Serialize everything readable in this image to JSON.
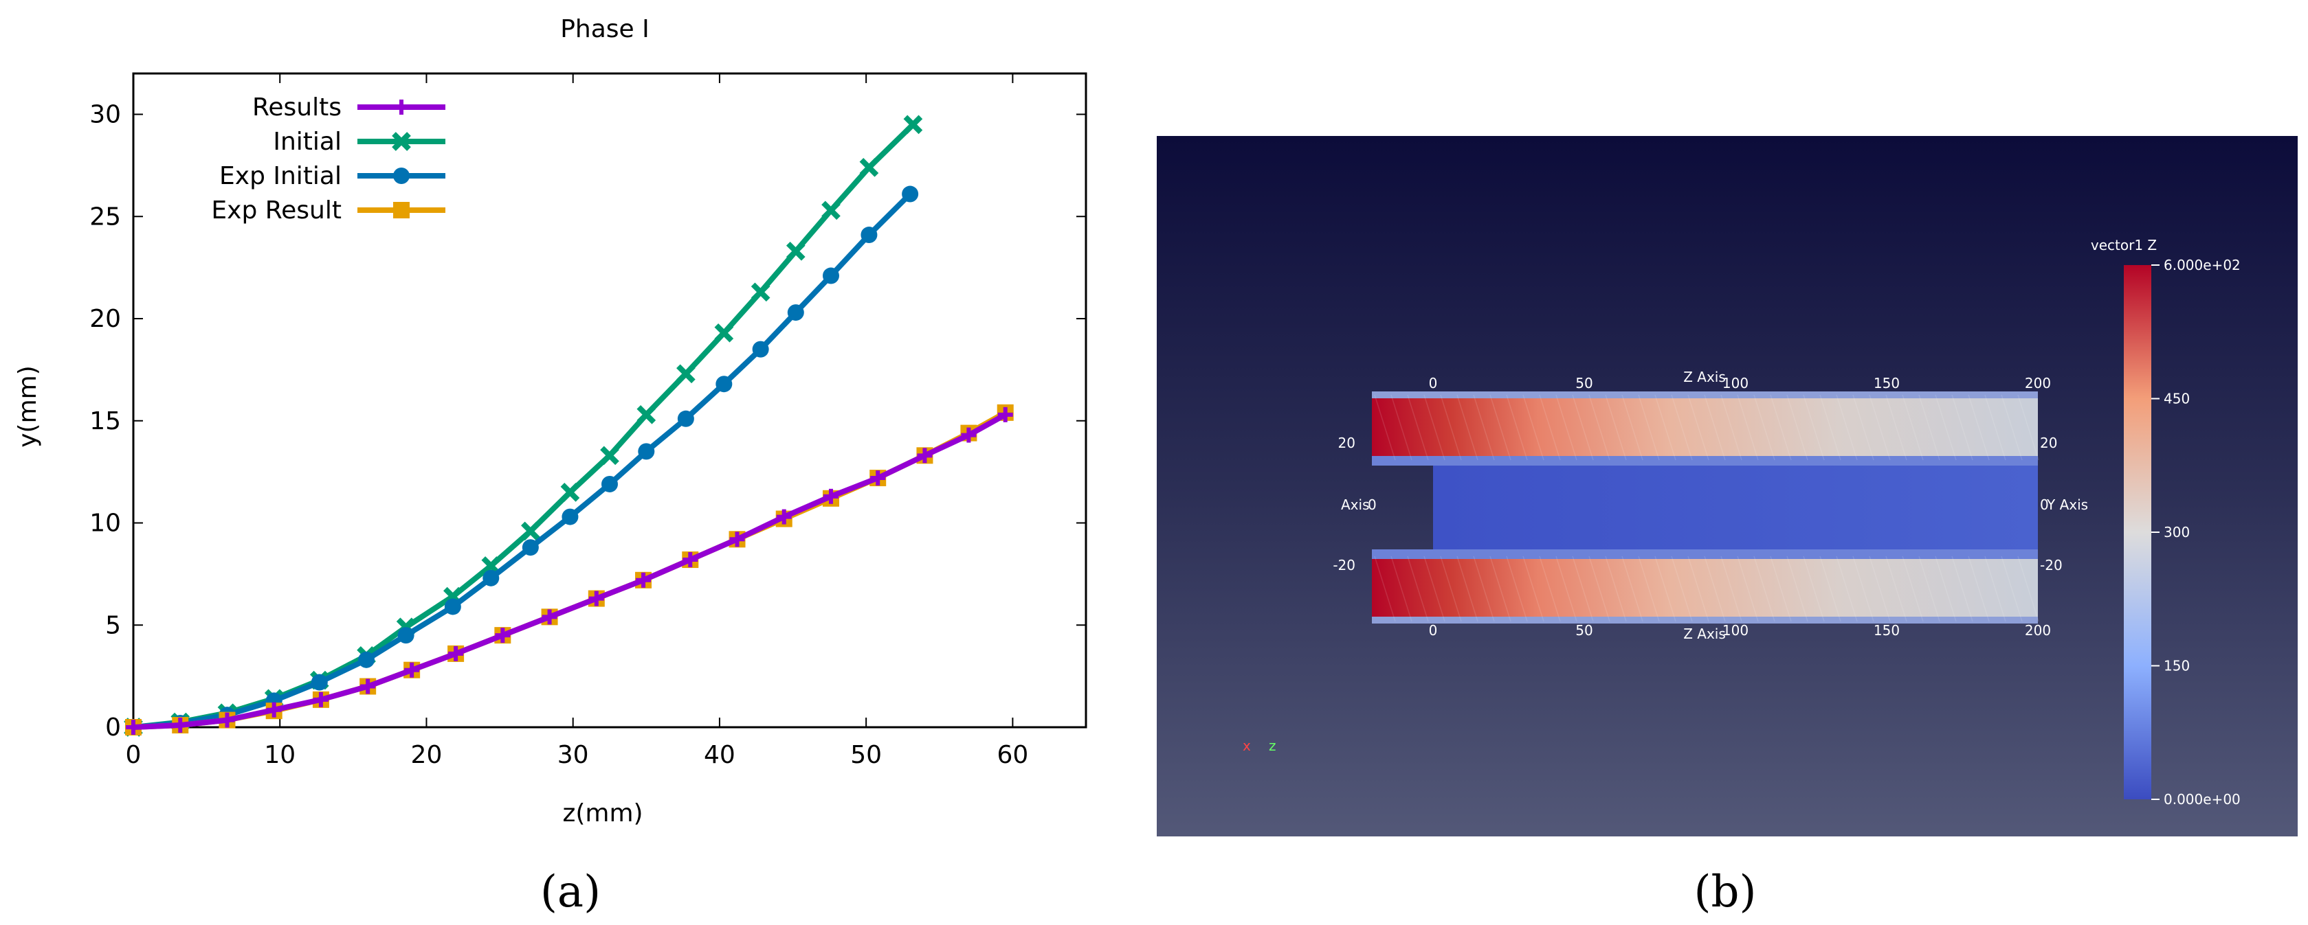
{
  "chart_data": [
    {
      "type": "line",
      "title": "Phase I",
      "xlabel": "z(mm)",
      "ylabel": "y(mm)",
      "xlim": [
        0,
        65
      ],
      "ylim": [
        0,
        32
      ],
      "xticks": [
        "0",
        "10",
        "20",
        "30",
        "40",
        "50",
        "60"
      ],
      "yticks": [
        "0",
        "5",
        "10",
        "15",
        "20",
        "25",
        "30"
      ],
      "legend_position": "top-left",
      "grid": false,
      "series": [
        {
          "name": "Results",
          "color": "#9400d3",
          "marker": "plus",
          "x": [
            0,
            3.2,
            6.4,
            9.6,
            12.8,
            16,
            19,
            22,
            25.2,
            28.4,
            31.6,
            34.8,
            38,
            41.2,
            44.4,
            47.6,
            50.8,
            54,
            57,
            59.5
          ],
          "y": [
            0,
            0.1,
            0.35,
            0.85,
            1.35,
            2.0,
            2.8,
            3.6,
            4.5,
            5.4,
            6.3,
            7.2,
            8.2,
            9.2,
            10.3,
            11.3,
            12.2,
            13.3,
            14.3,
            15.3
          ]
        },
        {
          "name": "Initial",
          "color": "#009e73",
          "marker": "x",
          "x": [
            0,
            3.2,
            6.4,
            9.6,
            12.7,
            15.9,
            18.6,
            21.8,
            24.4,
            27.1,
            29.8,
            32.5,
            35,
            37.7,
            40.3,
            42.8,
            45.2,
            47.6,
            50.2,
            53.2
          ],
          "y": [
            0,
            0.25,
            0.7,
            1.4,
            2.3,
            3.5,
            4.9,
            6.4,
            7.9,
            9.6,
            11.5,
            13.3,
            15.3,
            17.3,
            19.3,
            21.3,
            23.3,
            25.3,
            27.4,
            29.5
          ]
        },
        {
          "name": "Exp Initial",
          "color": "#0072b2",
          "marker": "circle",
          "x": [
            0,
            3.2,
            6.4,
            9.6,
            12.7,
            15.9,
            18.6,
            21.8,
            24.4,
            27.1,
            29.8,
            32.5,
            35,
            37.7,
            40.3,
            42.8,
            45.2,
            47.6,
            50.2,
            53
          ],
          "y": [
            0,
            0.2,
            0.6,
            1.3,
            2.2,
            3.3,
            4.5,
            5.9,
            7.3,
            8.8,
            10.3,
            11.9,
            13.5,
            15.1,
            16.8,
            18.5,
            20.3,
            22.1,
            24.1,
            26.1
          ]
        },
        {
          "name": "Exp Result",
          "color": "#e69f00",
          "marker": "square",
          "x": [
            0,
            3.2,
            6.4,
            9.6,
            12.8,
            16,
            19,
            22,
            25.2,
            28.4,
            31.6,
            34.8,
            38,
            41.2,
            44.4,
            47.6,
            50.8,
            54,
            57,
            59.5
          ],
          "y": [
            0,
            0.1,
            0.35,
            0.8,
            1.35,
            2.0,
            2.8,
            3.6,
            4.5,
            5.4,
            6.3,
            7.2,
            8.2,
            9.2,
            10.2,
            11.2,
            12.2,
            13.3,
            14.4,
            15.4
          ]
        }
      ],
      "caption": "(a)"
    },
    {
      "type": "heatmap",
      "colorbar_title": "vector1 Z",
      "colorbar_ticks": [
        "6.000e+02",
        "450",
        "300",
        "150",
        "0.000e+00"
      ],
      "colorbar_range": [
        0,
        600
      ],
      "colormap_colors": [
        "#b40426",
        "#f39e79",
        "#dddcdc",
        "#6f92f3",
        "#3b4cc0"
      ],
      "top_axis_title": "Z Axis",
      "bottom_axis_title": "Z Axis",
      "left_axis_title": "Axis",
      "right_axis_title": "Y Axis",
      "z_ticks": [
        "0",
        "50",
        "100",
        "150",
        "200"
      ],
      "left_ticks": [
        "20",
        "0",
        "-20"
      ],
      "right_ticks": [
        "20",
        "0",
        "-20"
      ],
      "orientation_labels": [
        "x",
        "z"
      ],
      "caption": "(b)"
    }
  ]
}
